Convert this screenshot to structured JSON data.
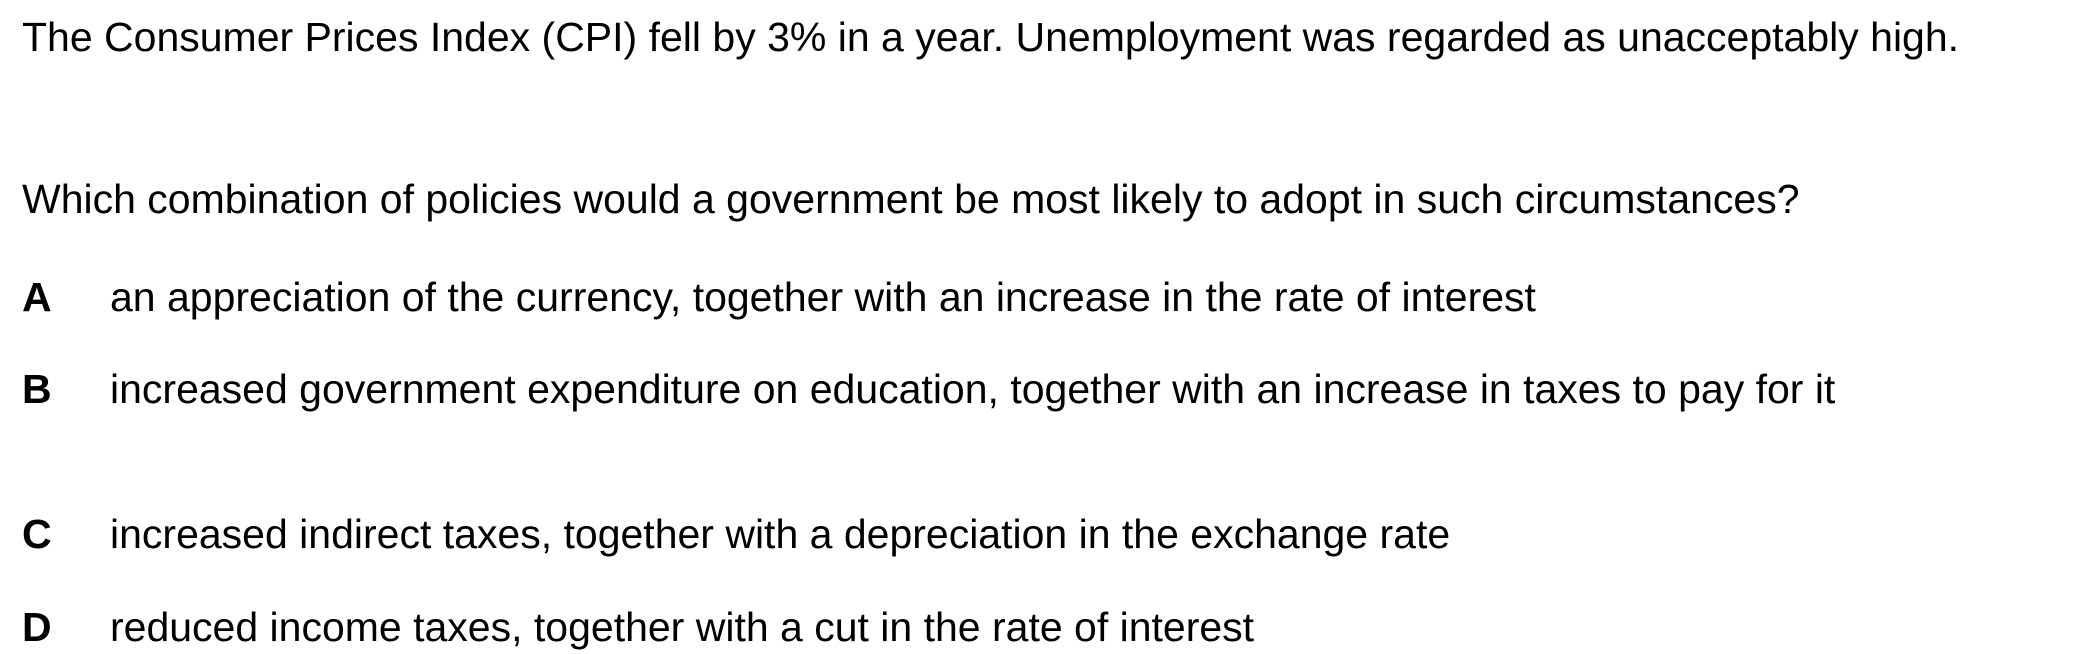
{
  "stem": "The Consumer Prices Index (CPI) fell by 3% in a year. Unemployment was regarded as unacceptably high.",
  "question": "Which combination of policies would a government be most likely to adopt in such circumstances?",
  "options": [
    {
      "letter": "A",
      "text": "an appreciation of the currency, together with an increase in the rate of interest"
    },
    {
      "letter": "B",
      "text": "increased government expenditure on education, together with an increase in taxes to pay for it"
    },
    {
      "letter": "C",
      "text": "increased indirect taxes, together with a depreciation in the exchange rate"
    },
    {
      "letter": "D",
      "text": "reduced income taxes, together with a cut in the rate of interest"
    }
  ]
}
